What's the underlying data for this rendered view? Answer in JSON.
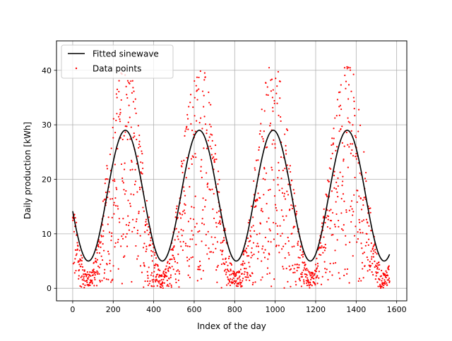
{
  "chart_data": {
    "type": "scatter",
    "xlabel": "Index of the day",
    "ylabel": "Daily production [kWh]",
    "xlim": [
      -80,
      1650
    ],
    "ylim": [
      -2.3,
      45.4
    ],
    "x_ticks": [
      0,
      200,
      400,
      600,
      800,
      1000,
      1200,
      1400,
      1600
    ],
    "y_ticks": [
      0,
      10,
      20,
      30,
      40
    ],
    "grid": true,
    "legend_position": "top-left",
    "colors": {
      "fitted_line": "#000000",
      "data_points": "#ff0000",
      "grid": "#b0b0b0"
    },
    "series": [
      {
        "name": "Fitted sinewave",
        "kind": "line",
        "model": {
          "offset": 17.0,
          "amplitude": 12.0,
          "period": 365.25,
          "peak_day": 260
        },
        "x_range": [
          0,
          1565
        ],
        "sample_step": 5
      },
      {
        "name": "Data points",
        "kind": "scatter",
        "x_range": [
          0,
          1565
        ],
        "count": 1566,
        "y_min": 0.0,
        "y_max": 42.9
      }
    ]
  }
}
